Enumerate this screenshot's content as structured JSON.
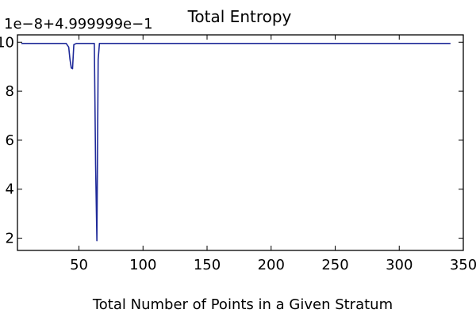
{
  "chart_data": {
    "type": "line",
    "title": "Total Entropy",
    "xlabel": "Total Number of Points in a Given Stratum",
    "ylabel": "",
    "axis_offset_text": "1e−8+4.999999e−1",
    "xlim": [
      2,
      350
    ],
    "ylim": [
      1.5,
      10.3
    ],
    "xticks": [
      50,
      100,
      150,
      200,
      250,
      300,
      350
    ],
    "yticks": [
      2,
      4,
      6,
      8,
      10
    ],
    "grid": false,
    "series": [
      {
        "color": "#1f2a99",
        "x": [
          5,
          40,
          42,
          43,
          44,
          45,
          46,
          48,
          62,
          63,
          64,
          65,
          66,
          340
        ],
        "y": [
          9.95,
          9.95,
          9.8,
          9.3,
          8.95,
          8.92,
          9.9,
          9.95,
          9.95,
          5.0,
          1.9,
          9.3,
          9.95,
          9.95
        ]
      }
    ]
  }
}
